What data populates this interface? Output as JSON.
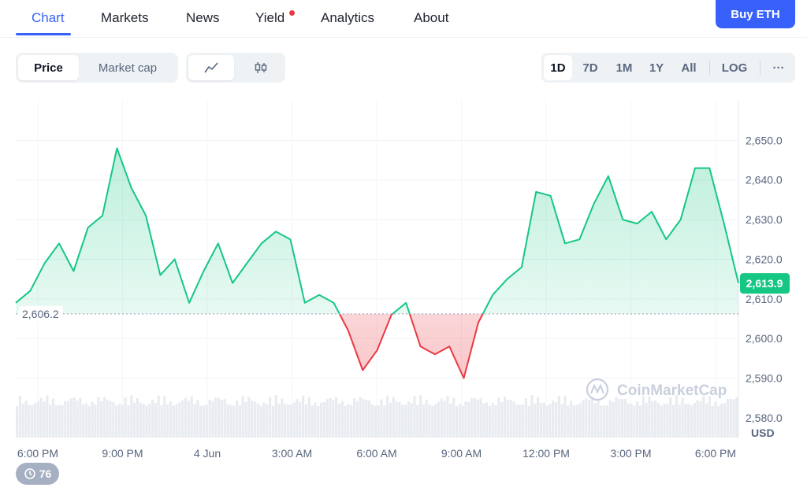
{
  "nav": {
    "tabs": [
      {
        "label": "Chart",
        "active": true
      },
      {
        "label": "Markets"
      },
      {
        "label": "News"
      },
      {
        "label": "Yield",
        "badge_dot": true
      },
      {
        "label": "Analytics"
      },
      {
        "label": "About"
      }
    ],
    "buy_button": "Buy ETH"
  },
  "toolbar": {
    "metric_tabs": [
      "Price",
      "Market cap"
    ],
    "metric_selected": "Price",
    "chart_type_icons": [
      "line-chart-icon",
      "candlestick-icon"
    ],
    "chart_type_selected": "line-chart-icon",
    "ranges": [
      "1D",
      "7D",
      "1M",
      "1Y",
      "All"
    ],
    "range_selected": "1D",
    "log_label": "LOG",
    "more_label": "···"
  },
  "chart_data": {
    "type": "area",
    "x_tick_labels": [
      "6:00 PM",
      "9:00 PM",
      "4 Jun",
      "3:00 AM",
      "6:00 AM",
      "9:00 AM",
      "12:00 PM",
      "3:00 PM",
      "6:00 PM"
    ],
    "y_tick_labels": [
      "2,650.0",
      "2,640.0",
      "2,630.0",
      "2,620.0",
      "2,610.0",
      "2,600.0",
      "2,590.0",
      "2,580.0"
    ],
    "ylim": [
      2575,
      2660
    ],
    "unit_label": "USD",
    "baseline_value": 2606.2,
    "baseline_label": "2,606.2",
    "current_value": 2613.9,
    "current_label": "2,613.9",
    "grid": true,
    "colors": {
      "up": "#16c784",
      "down": "#ea3943",
      "accent": "#3861fb"
    },
    "watermark": "CoinMarketCap",
    "series": [
      {
        "x": [
          0,
          0.02,
          0.04,
          0.06,
          0.08,
          0.1,
          0.12,
          0.14,
          0.16,
          0.18,
          0.2,
          0.22,
          0.24,
          0.26,
          0.28,
          0.3,
          0.32,
          0.34,
          0.36,
          0.38,
          0.4,
          0.42,
          0.44,
          0.46,
          0.48,
          0.5,
          0.52,
          0.54,
          0.56,
          0.58,
          0.6,
          0.62,
          0.64,
          0.66,
          0.68,
          0.7,
          0.72,
          0.74,
          0.76,
          0.78,
          0.8,
          0.82,
          0.84,
          0.86,
          0.88,
          0.9,
          0.92,
          0.94,
          0.96,
          0.98,
          1.0
        ],
        "values": [
          2609,
          2612,
          2619,
          2624,
          2617,
          2628,
          2631,
          2648,
          2638,
          2631,
          2616,
          2620,
          2609,
          2617,
          2624,
          2614,
          2619,
          2624,
          2627,
          2625,
          2609,
          2611,
          2609,
          2602,
          2592,
          2597,
          2606,
          2609,
          2598,
          2596,
          2598,
          2590,
          2604,
          2611,
          2615,
          2618,
          2637,
          2636,
          2624,
          2625,
          2634,
          2641,
          2630,
          2629,
          2632,
          2625,
          2630,
          2643,
          2643,
          2629,
          2614
        ]
      }
    ]
  },
  "history_badge": "76"
}
